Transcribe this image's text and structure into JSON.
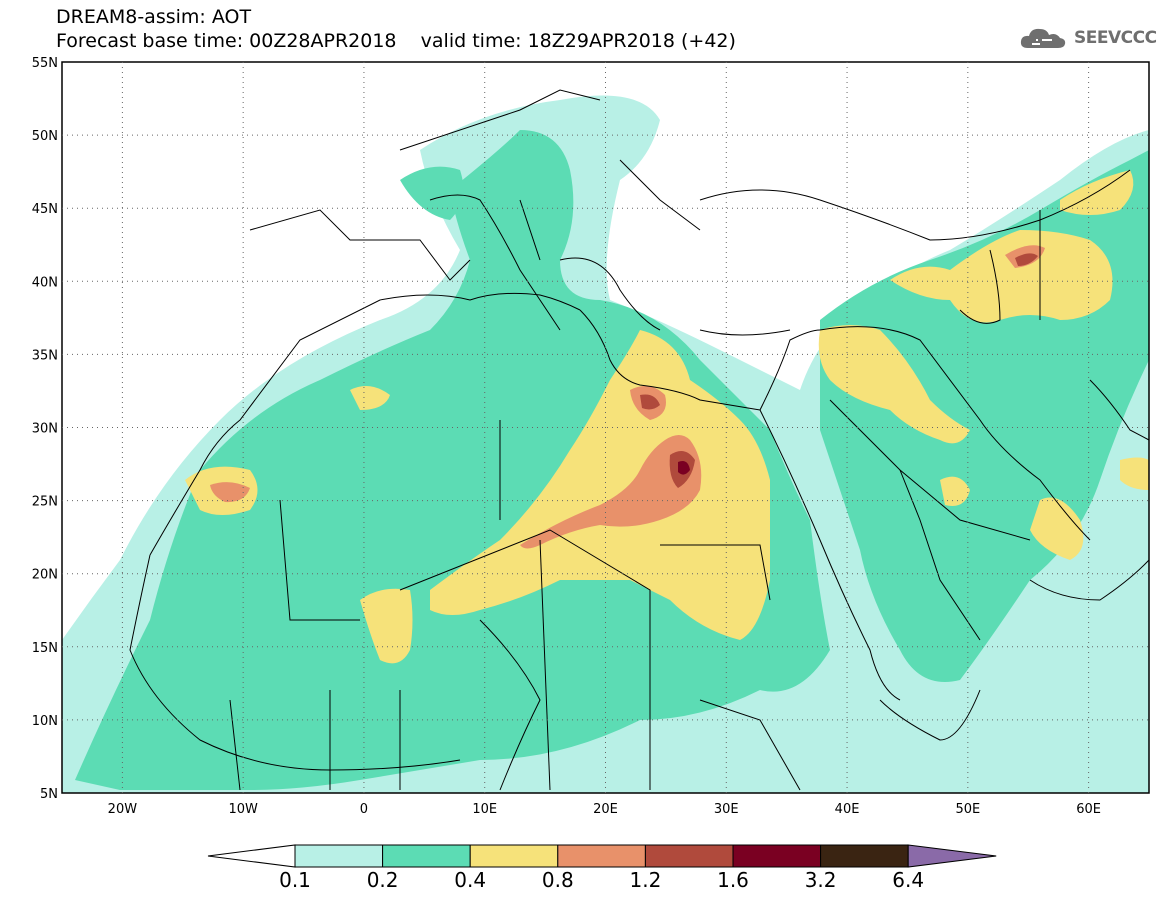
{
  "title": {
    "line1": "DREAM8-assim: AOT",
    "line2": "Forecast base time: 00Z28APR2018    valid time: 18Z29APR2018 (+42)"
  },
  "logo": {
    "text": "SEEVCCC",
    "icon": "cloud-logo-icon"
  },
  "map": {
    "lat_labels": [
      "55N",
      "50N",
      "45N",
      "40N",
      "35N",
      "30N",
      "25N",
      "20N",
      "15N",
      "10N",
      "5N"
    ],
    "lon_labels": [
      "20W",
      "10W",
      "0",
      "10E",
      "20E",
      "30E",
      "40E",
      "50E",
      "60E"
    ],
    "lon_range": [
      -25,
      65
    ],
    "lat_range": [
      5,
      55
    ]
  },
  "colorbar": {
    "labels": [
      "0.1",
      "0.2",
      "0.4",
      "0.8",
      "1.2",
      "1.6",
      "3.2",
      "6.4"
    ],
    "colors": [
      "#ffffff",
      "#b8f0e6",
      "#5cdcb4",
      "#f6e27a",
      "#e8916a",
      "#b04a3c",
      "#7a0022",
      "#3a2412",
      "#8a6aa8"
    ]
  }
}
